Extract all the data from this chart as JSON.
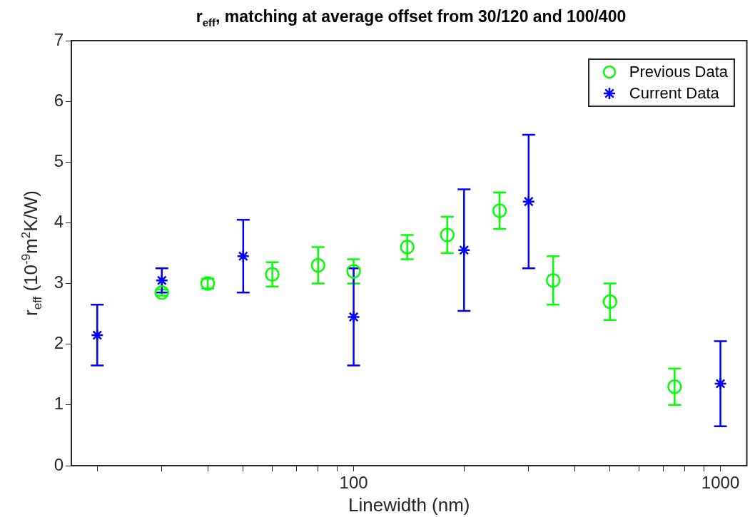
{
  "chart_data": {
    "type": "scatter",
    "title": "r$_{eff}$, matching at average offset from 30/120 and 100/400",
    "xlabel": "Linewidth (nm)",
    "ylabel": "r$_{eff}$ (10$^{-9}$m$^{2}$K/W)",
    "log": "x",
    "xlim": [
      17,
      1180
    ],
    "xticks": [
      {
        "value": 20,
        "label": null
      },
      {
        "value": 30,
        "label": null
      },
      {
        "value": 40,
        "label": null
      },
      {
        "value": 50,
        "label": null
      },
      {
        "value": 60,
        "label": null
      },
      {
        "value": 70,
        "label": null
      },
      {
        "value": 80,
        "label": null
      },
      {
        "value": 90,
        "label": null
      },
      100,
      {
        "value": 200,
        "label": null
      },
      {
        "value": 300,
        "label": null
      },
      {
        "value": 400,
        "label": null
      },
      {
        "value": 500,
        "label": null
      },
      {
        "value": 600,
        "label": null
      },
      {
        "value": 700,
        "label": null
      },
      {
        "value": 800,
        "label": null
      },
      {
        "value": 900,
        "label": null
      },
      1000
    ],
    "ylim": [
      0,
      7
    ],
    "yticks": [
      0,
      1,
      2,
      3,
      4,
      5,
      6,
      7
    ],
    "grid": false,
    "legend": "top right",
    "series": [
      {
        "name": "Previous Data",
        "color": "#00ff00",
        "marker": "circle",
        "x": [
          30,
          40,
          60,
          80,
          100,
          140,
          180,
          250,
          350,
          500,
          750
        ],
        "values": [
          2.85,
          3.0,
          3.15,
          3.3,
          3.2,
          3.6,
          3.8,
          4.2,
          3.05,
          2.7,
          1.3
        ],
        "errors": [
          [
            2.8,
            2.9
          ],
          [
            2.92,
            3.08
          ],
          [
            2.95,
            3.35
          ],
          [
            3.0,
            3.6
          ],
          [
            3.0,
            3.4
          ],
          [
            3.4,
            3.8
          ],
          [
            3.5,
            4.1
          ],
          [
            3.9,
            4.5
          ],
          [
            2.65,
            3.45
          ],
          [
            2.4,
            3.0
          ],
          [
            1.0,
            1.6
          ]
        ]
      },
      {
        "name": "Current Data",
        "color": "#0000ff",
        "marker": "cross",
        "x": [
          20,
          30,
          50,
          100,
          200,
          300,
          1000
        ],
        "values": [
          2.15,
          3.05,
          3.45,
          2.45,
          3.55,
          4.35,
          1.35
        ],
        "errors": [
          [
            1.65,
            2.65
          ],
          [
            2.85,
            3.25
          ],
          [
            2.85,
            4.05
          ],
          [
            1.65,
            3.25
          ],
          [
            2.55,
            4.55
          ],
          [
            3.25,
            5.45
          ],
          [
            0.65,
            2.05
          ]
        ]
      }
    ]
  }
}
